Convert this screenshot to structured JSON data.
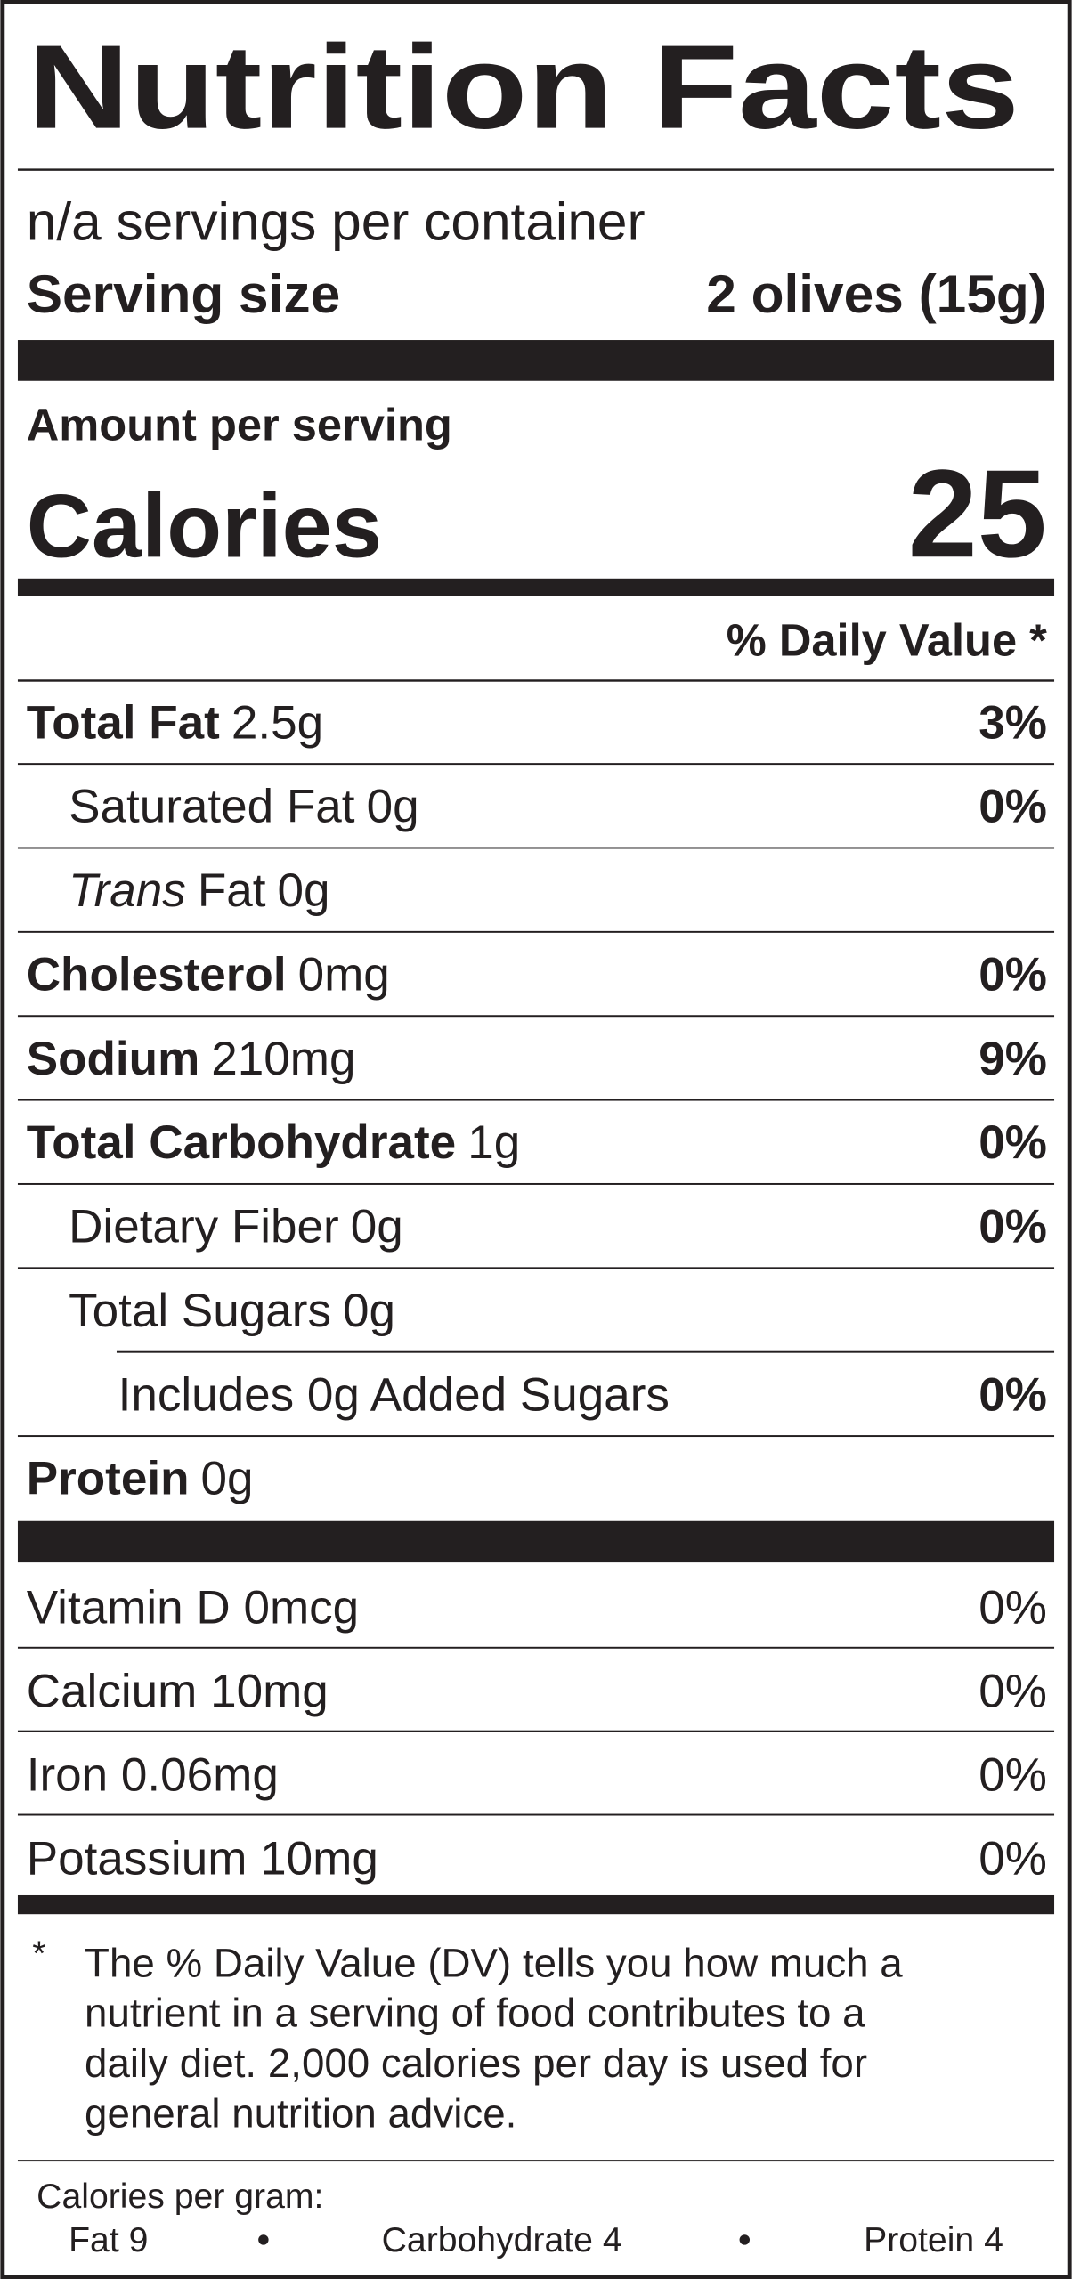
{
  "title": "Nutrition Facts",
  "servings": "n/a servings per container",
  "serving_size": {
    "label": "Serving size",
    "value": "2 olives (15g)"
  },
  "amount_per_serving": "Amount per serving",
  "calories": {
    "label": "Calories",
    "value": "25"
  },
  "daily_value_header": "% Daily Value *",
  "nutrients": [
    {
      "name": "Total Fat",
      "amount": "2.5g",
      "dv": "3%",
      "level": 0
    },
    {
      "name": "Saturated Fat",
      "amount": "0g",
      "dv": "0%",
      "level": 1
    },
    {
      "name_italic": "Trans",
      "name": "Fat",
      "amount": "0g",
      "level": 1
    },
    {
      "name": "Cholesterol",
      "amount": "0mg",
      "dv": "0%",
      "level": 0
    },
    {
      "name": "Sodium",
      "amount": "210mg",
      "dv": "9%",
      "level": 0
    },
    {
      "name": "Total Carbohydrate",
      "amount": "1g",
      "dv": "0%",
      "level": 0
    },
    {
      "name": "Dietary Fiber",
      "amount": "0g",
      "dv": "0%",
      "level": 1
    },
    {
      "name": "Total Sugars",
      "amount": "0g",
      "level": 1
    },
    {
      "name": "Includes 0g Added Sugars",
      "dv": "0%",
      "level": 2
    },
    {
      "name": "Protein",
      "amount": "0g",
      "level": 0
    }
  ],
  "vitamins": [
    {
      "name": "Vitamin D 0mcg",
      "dv": "0%"
    },
    {
      "name": "Calcium 10mg",
      "dv": "0%"
    },
    {
      "name": "Iron 0.06mg",
      "dv": "0%"
    },
    {
      "name": "Potassium 10mg",
      "dv": "0%"
    }
  ],
  "footnote": {
    "mark": "*",
    "lines": [
      "The % Daily Value (DV) tells you how much a",
      "nutrient in a serving of food contributes to a",
      "daily diet. 2,000 calories per day is used for",
      "general nutrition advice."
    ]
  },
  "calories_per_gram": {
    "label": "Calories per gram:",
    "items": [
      "Fat 9",
      "Carbohydrate 4",
      "Protein 4"
    ]
  }
}
